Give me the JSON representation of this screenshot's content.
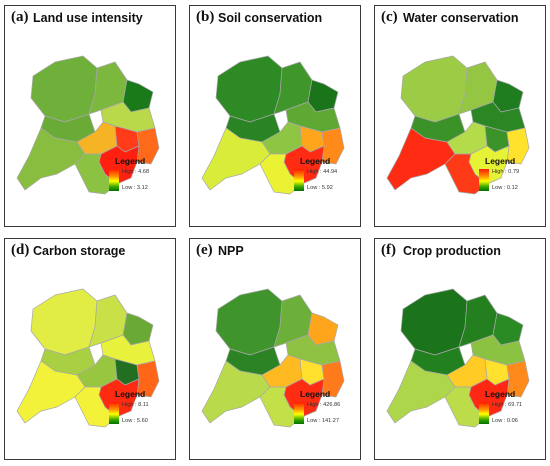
{
  "panels": [
    {
      "label": "(a)",
      "title": "Land use intensity",
      "legend_title": "Legend",
      "high": "High : 4.68",
      "low": "Low : 3.12",
      "colors": [
        "#6fb03a",
        "#7cb83e",
        "#6aab38",
        "#1a7a1a",
        "#b9d84a",
        "#f6b323",
        "#ff3b1a",
        "#ff6a1a",
        "#ff2010",
        "#88bd40",
        "#8cc242"
      ]
    },
    {
      "label": "(b)",
      "title": "Soil conservation",
      "legend_title": "Legend",
      "high": "High : 44.94",
      "low": "Low : 5.92",
      "colors": [
        "#2e8a25",
        "#3f962a",
        "#2a8423",
        "#1a741a",
        "#5ea934",
        "#8ec643",
        "#ffa51c",
        "#ff8a1a",
        "#ff2b12",
        "#d9ec3a",
        "#eaf233"
      ]
    },
    {
      "label": "(c)",
      "title": "Water conservation",
      "legend_title": "Legend",
      "high": "High : 0.79",
      "low": "Low : 0.12",
      "colors": [
        "#9ccc45",
        "#94c644",
        "#3a9228",
        "#1f7c1f",
        "#2a8723",
        "#b4dc4a",
        "#3c932a",
        "#ffe22b",
        "#e6f235",
        "#ff2c14",
        "#ff3a16"
      ]
    },
    {
      "label": "(d)",
      "title": "Carbon storage",
      "legend_title": "Legend",
      "high": "High : 8.11",
      "low": "Low : 5.60",
      "colors": [
        "#e1ec45",
        "#c9e146",
        "#a8d042",
        "#6aa934",
        "#e8f13c",
        "#99c640",
        "#236f22",
        "#ff6618",
        "#ff2a12",
        "#f2f23a",
        "#f4f238"
      ]
    },
    {
      "label": "(e)",
      "title": "NPP",
      "legend_title": "Legend",
      "high": "High : 426.86",
      "low": "Low : 141.27",
      "colors": [
        "#3f942c",
        "#6cb03a",
        "#2c8324",
        "#ffa51c",
        "#8fc242",
        "#ffba22",
        "#ffe02c",
        "#ff7a1a",
        "#ff2c14",
        "#b9da4a",
        "#c4e048"
      ]
    },
    {
      "label": "(f)",
      "title": "Crop production",
      "legend_title": "Legend",
      "high": "High : 69.71",
      "low": "Low : 0.06",
      "colors": [
        "#1b741c",
        "#24801f",
        "#23801f",
        "#2a8a23",
        "#8cc242",
        "#ffcb24",
        "#ffe02c",
        "#ff8a1c",
        "#ff2812",
        "#aed64a",
        "#bcdc49"
      ]
    }
  ]
}
